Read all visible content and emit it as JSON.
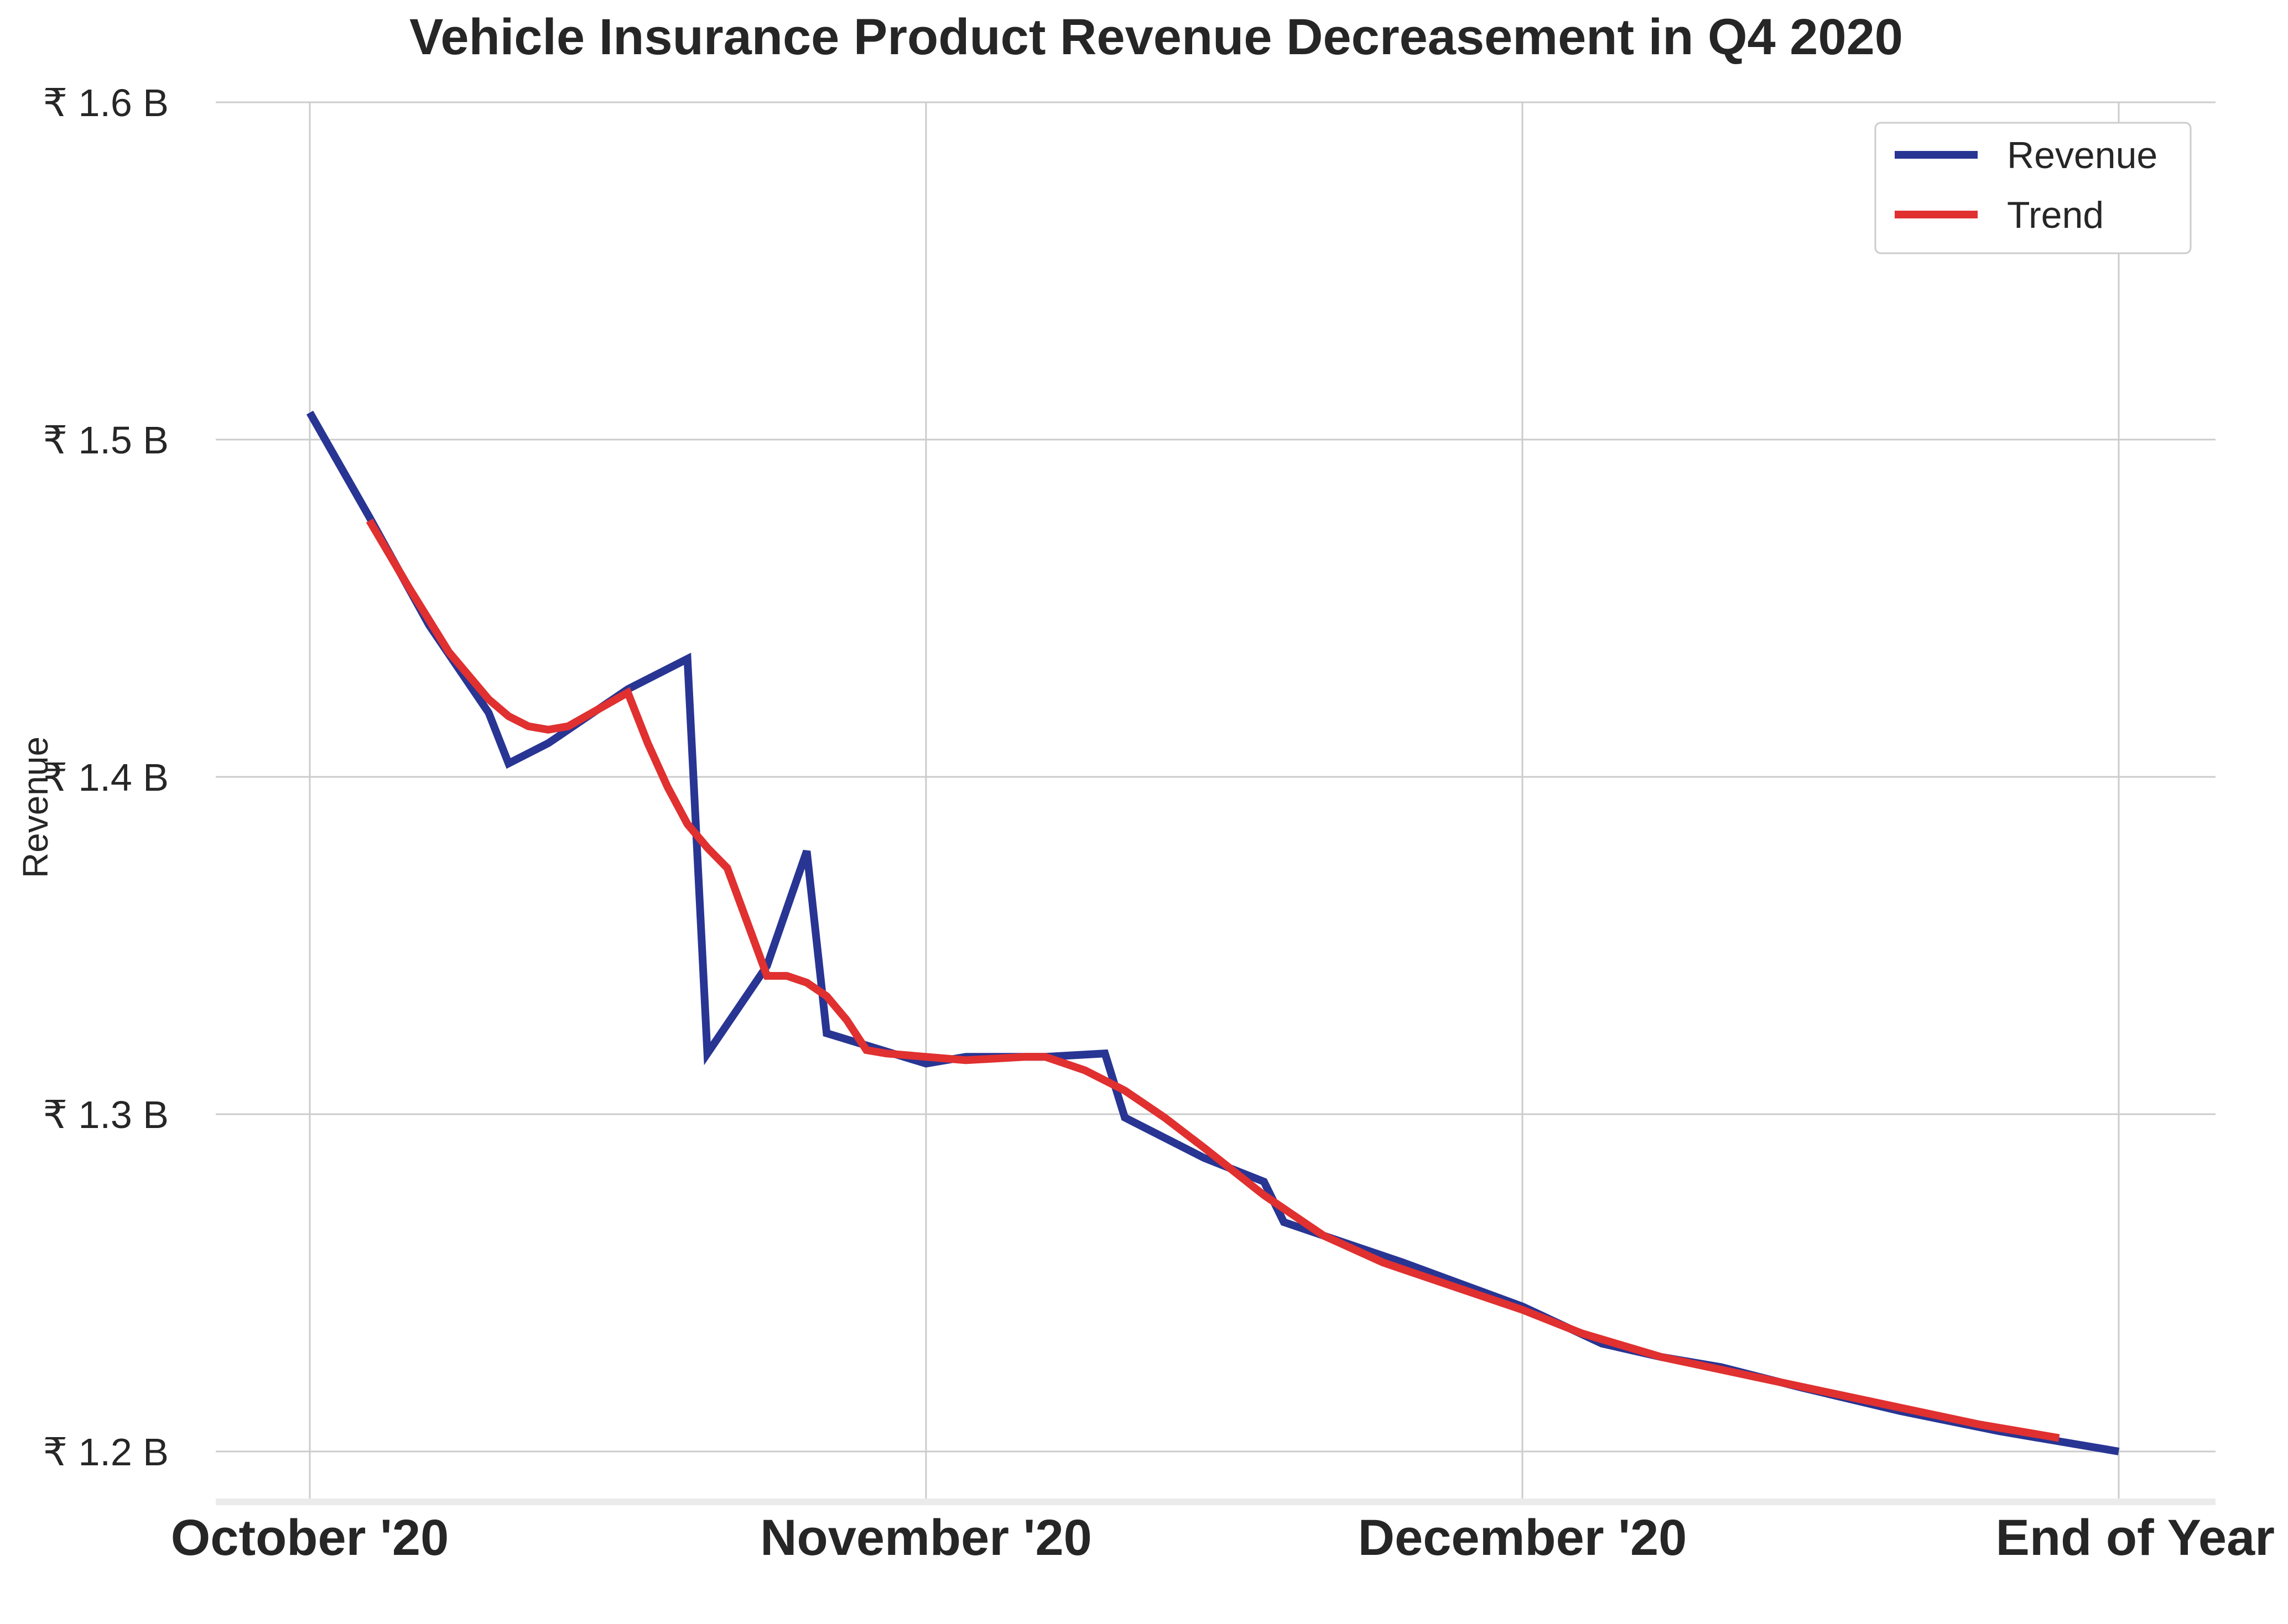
{
  "chart_data": {
    "type": "line",
    "title": "Vehicle Insurance Product Revenue Decreasement in Q4 2020",
    "xlabel": "",
    "ylabel": "Revenue",
    "ylim": [
      1.19,
      1.6
    ],
    "yticks": [
      1.2,
      1.3,
      1.4,
      1.5,
      1.6
    ],
    "ytick_labels": [
      "₹ 1.2 B",
      "₹ 1.3 B",
      "₹ 1.4 B",
      "₹ 1.5 B",
      "₹ 1.6 B"
    ],
    "xlim": [
      "2020-09-26",
      "2021-01-05"
    ],
    "xticks": [
      "2020-10-01",
      "2020-11-01",
      "2020-12-01",
      "2020-12-31"
    ],
    "xtick_labels": [
      "October '20",
      "November '20",
      "December '20",
      "End of Year"
    ],
    "grid": true,
    "legend": {
      "position": "top-right"
    },
    "series": [
      {
        "name": "Revenue",
        "color": "#283593",
        "x": [
          "2020-10-01",
          "2020-10-04",
          "2020-10-07",
          "2020-10-10",
          "2020-10-11",
          "2020-10-13",
          "2020-10-17",
          "2020-10-20",
          "2020-10-21",
          "2020-10-24",
          "2020-10-26",
          "2020-10-27",
          "2020-11-01",
          "2020-11-03",
          "2020-11-07",
          "2020-11-10",
          "2020-11-11",
          "2020-11-15",
          "2020-11-18",
          "2020-11-19",
          "2020-11-21",
          "2020-11-25",
          "2020-12-01",
          "2020-12-05",
          "2020-12-08",
          "2020-12-11",
          "2020-12-15",
          "2020-12-20",
          "2020-12-25",
          "2020-12-31"
        ],
        "values": [
          1.508,
          1.477,
          1.445,
          1.419,
          1.404,
          1.41,
          1.426,
          1.435,
          1.318,
          1.344,
          1.378,
          1.324,
          1.315,
          1.317,
          1.317,
          1.318,
          1.299,
          1.287,
          1.28,
          1.268,
          1.264,
          1.256,
          1.243,
          1.232,
          1.228,
          1.225,
          1.219,
          1.212,
          1.206,
          1.2
        ]
      },
      {
        "name": "Trend",
        "color": "#e03030",
        "x": [
          "2020-10-04",
          "2020-10-06",
          "2020-10-08",
          "2020-10-09",
          "2020-10-10",
          "2020-10-11",
          "2020-10-12",
          "2020-10-13",
          "2020-10-14",
          "2020-10-17",
          "2020-10-18",
          "2020-10-19",
          "2020-10-20",
          "2020-10-21",
          "2020-10-22",
          "2020-10-24",
          "2020-10-25",
          "2020-10-26",
          "2020-10-27",
          "2020-10-28",
          "2020-10-29",
          "2020-10-30",
          "2020-11-01",
          "2020-11-03",
          "2020-11-06",
          "2020-11-07",
          "2020-11-09",
          "2020-11-11",
          "2020-11-13",
          "2020-11-15",
          "2020-11-18",
          "2020-11-21",
          "2020-11-24",
          "2020-11-28",
          "2020-12-01",
          "2020-12-04",
          "2020-12-08",
          "2020-12-12",
          "2020-12-16",
          "2020-12-20",
          "2020-12-24",
          "2020-12-28"
        ],
        "values": [
          1.476,
          1.456,
          1.437,
          1.43,
          1.423,
          1.418,
          1.415,
          1.414,
          1.415,
          1.425,
          1.41,
          1.397,
          1.386,
          1.379,
          1.373,
          1.341,
          1.341,
          1.339,
          1.335,
          1.328,
          1.319,
          1.318,
          1.317,
          1.316,
          1.317,
          1.317,
          1.313,
          1.307,
          1.299,
          1.29,
          1.276,
          1.264,
          1.256,
          1.248,
          1.242,
          1.235,
          1.228,
          1.223,
          1.218,
          1.213,
          1.208,
          1.204
        ]
      }
    ]
  }
}
